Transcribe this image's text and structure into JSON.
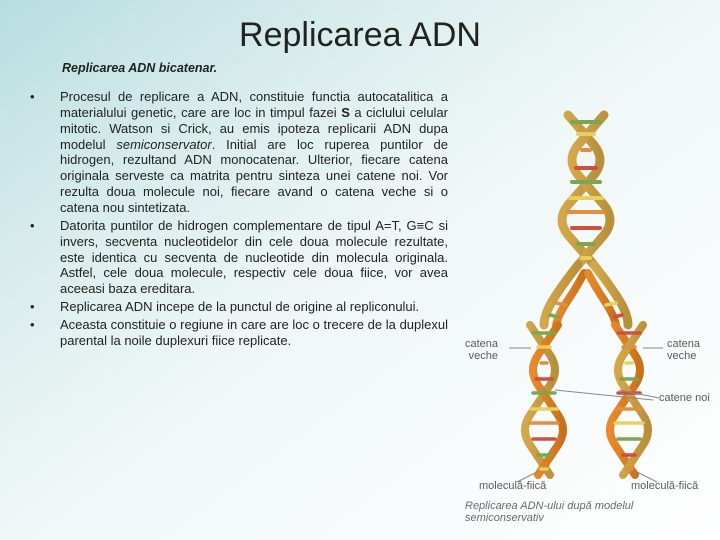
{
  "title": "Replicarea ADN",
  "subtitle": "Replicarea ADN bicatenar.",
  "bullets": [
    {
      "marker": "•",
      "html": "Procesul de replicare a ADN, constituie functia autocatalitica a materialului genetic, care are loc in timpul fazei <span class='bold'>S</span> a ciclului celular mitotic. Watson si Crick, au emis ipoteza replicarii ADN dupa modelul <span class='italic'>semiconservator</span>. Initial are loc ruperea puntilor de hidrogen, rezultand ADN monocatenar. Ulterior, fiecare catena originala serveste ca matrita pentru sinteza unei catene noi. Vor rezulta doua molecule noi, fiecare avand o catena veche si o catena nou sintetizata."
    },
    {
      "marker": "•",
      "html": "Datorita puntilor de hidrogen complementare de tipul A=T, G≡C si invers, secventa nucleotidelor din cele doua molecule rezultate, este identica cu secventa de nucleotide din molecula originala. Astfel, cele doua molecule, respectiv cele doua fiice, vor avea aceeasi baza ereditara."
    },
    {
      "marker": "•",
      "html": "Replicarea ADN incepe de la punctul de origine al repliconului."
    },
    {
      "marker": "•",
      "html": "Aceasta constituie o regiune in care are loc o trecere de la duplexul parental la noile duplexuri fiice replicate."
    }
  ],
  "figure": {
    "labels": {
      "catena_veche_left": "catena\nveche",
      "catena_veche_right": "catena\nveche",
      "catene_noi": "catene noi",
      "molecula_fiica_left": "moleculă-fiică",
      "molecula_fiica_right": "moleculă-fiică"
    },
    "caption": "Replicarea ADN-ului după modelul semiconservativ",
    "colors": {
      "strand_old": "#d4a84a",
      "strand_old_dark": "#b8903a",
      "strand_new": "#e88a2a",
      "strand_new_dark": "#c8701a",
      "base_green": "#7aa850",
      "base_yellow": "#e8d060",
      "base_orange": "#e09040",
      "base_red": "#d05040",
      "label_line": "#888888",
      "text": "#5a5a5a"
    }
  },
  "background": {
    "gradient_start": "#b8dde0",
    "gradient_end": "#ffffff"
  }
}
